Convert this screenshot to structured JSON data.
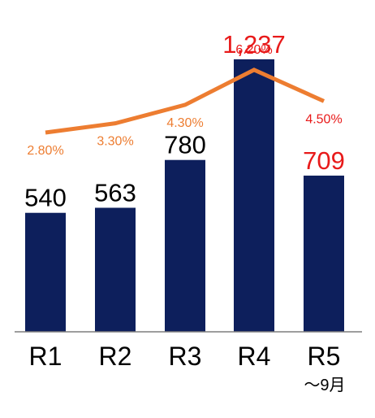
{
  "chart_data": {
    "type": "bar",
    "title": "",
    "xlabel": "",
    "ylabel": "",
    "categories": [
      "R1",
      "R2",
      "R3",
      "R4",
      "R5"
    ],
    "category_note": "～9月",
    "series": [
      {
        "kind": "bar",
        "values": [
          540,
          563,
          780,
          1237,
          709
        ],
        "labels": [
          "540",
          "563",
          "780",
          "1,237",
          "709"
        ],
        "color": "#0d1f5c",
        "highlight_label_color": "#e81a1a",
        "highlight_indices": [
          3,
          4
        ]
      },
      {
        "kind": "line",
        "values": [
          2.8,
          3.3,
          4.3,
          6.2,
          4.5
        ],
        "labels": [
          "2.80%",
          "3.30%",
          "4.30%",
          "6.20%",
          "4.50%"
        ],
        "color": "#ed7d31",
        "label_color": "#ed7d31",
        "highlight_label_color": "#e81a1a",
        "highlight_indices": [
          3,
          4
        ]
      }
    ],
    "ylim": [
      0,
      1340
    ],
    "line_ylim": [
      -8.0,
      8.0
    ],
    "grid": false,
    "legend": "none"
  }
}
